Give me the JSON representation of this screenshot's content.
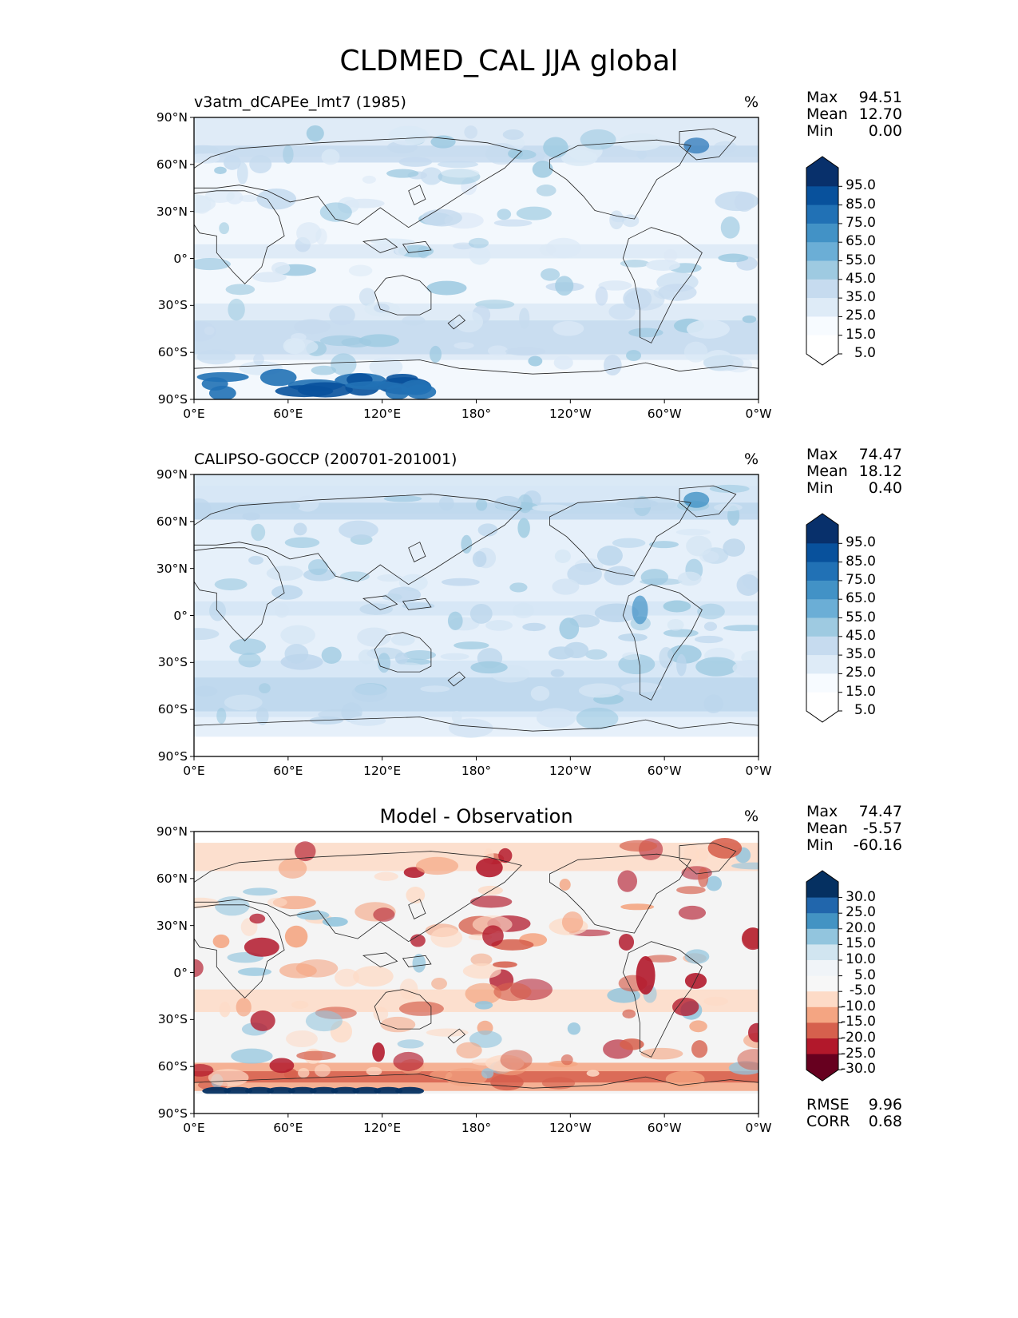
{
  "title": "CLDMED_CAL JJA global",
  "x_ticks": [
    "0°E",
    "60°E",
    "120°E",
    "180°",
    "120°W",
    "60°W",
    "0°W"
  ],
  "y_ticks": [
    "90°N",
    "60°N",
    "30°N",
    "0°",
    "30°S",
    "60°S",
    "90°S"
  ],
  "panels": [
    {
      "title": "v3atm_dCAPEe_lmt7 (1985)",
      "units": "%",
      "stats": [
        {
          "label": "Max",
          "value": "94.51"
        },
        {
          "label": "Mean",
          "value": "12.70"
        },
        {
          "label": "Min",
          "value": "0.00"
        }
      ],
      "colorbar": {
        "labels": [
          "95.0",
          "85.0",
          "75.0",
          "65.0",
          "55.0",
          "45.0",
          "35.0",
          "25.0",
          "15.0",
          "5.0"
        ],
        "colors": [
          "#08306b",
          "#08519c",
          "#2171b5",
          "#4292c6",
          "#6baed6",
          "#9ecae1",
          "#c6dbef",
          "#deebf7",
          "#f7fbff",
          "#ffffff"
        ]
      },
      "field_colors": {
        "base": "#f3f8fd",
        "light": "#dbe9f6",
        "mid": "#c6dbef",
        "strong": "#9ecae1",
        "dark": "#2171b5",
        "darkest": "#08519c"
      }
    },
    {
      "title": "CALIPSO-GOCCP (200701-201001)",
      "units": "%",
      "stats": [
        {
          "label": "Max",
          "value": "74.47"
        },
        {
          "label": "Mean",
          "value": "18.12"
        },
        {
          "label": "Min",
          "value": "0.40"
        }
      ],
      "colorbar": {
        "labels": [
          "95.0",
          "85.0",
          "75.0",
          "65.0",
          "55.0",
          "45.0",
          "35.0",
          "25.0",
          "15.0",
          "5.0"
        ],
        "colors": [
          "#08306b",
          "#08519c",
          "#2171b5",
          "#4292c6",
          "#6baed6",
          "#9ecae1",
          "#c6dbef",
          "#deebf7",
          "#f7fbff",
          "#ffffff"
        ]
      },
      "field_colors": {
        "base": "#e6f0fa",
        "light": "#d4e5f4",
        "mid": "#bcd6ec",
        "strong": "#9ecae1",
        "dark": "#6baed6",
        "darkest": "#4292c6"
      }
    },
    {
      "title": "Model - Observation",
      "units": "%",
      "stats": [
        {
          "label": "Max",
          "value": "74.47"
        },
        {
          "label": "Mean",
          "value": "-5.57"
        },
        {
          "label": "Min",
          "value": "-60.16"
        }
      ],
      "colorbar": {
        "labels": [
          "30.0",
          "25.0",
          "20.0",
          "15.0",
          "10.0",
          "5.0",
          "-5.0",
          "-10.0",
          "-15.0",
          "-20.0",
          "-25.0",
          "-30.0"
        ],
        "colors": [
          "#053061",
          "#2166ac",
          "#4393c3",
          "#92c5de",
          "#d1e5f0",
          "#f0f4f8",
          "#f7f7f7",
          "#fddbc7",
          "#f4a582",
          "#d6604d",
          "#b2182b",
          "#67001f"
        ]
      },
      "field_colors": {
        "base": "#f4f4f4",
        "light": "#fddbc7",
        "mid": "#f4a582",
        "strong": "#d6604d",
        "dark": "#b2182b",
        "blue": "#92c5de",
        "deepblue": "#053061"
      },
      "metrics": [
        {
          "label": "RMSE",
          "value": "9.96"
        },
        {
          "label": "CORR",
          "value": "0.68"
        }
      ]
    }
  ]
}
